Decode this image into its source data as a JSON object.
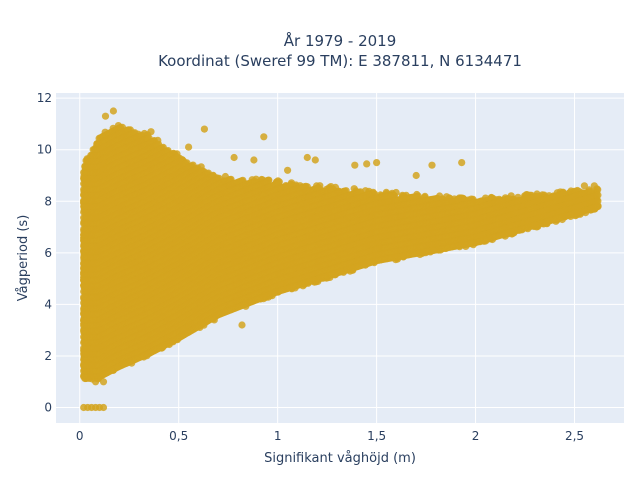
{
  "chart_data": {
    "type": "scatter",
    "title_lines": [
      "År 1979 - 2019",
      "Koordinat (Sweref 99 TM): E 387811, N 6134471"
    ],
    "xlabel": "Signifikant våghöjd (m)",
    "ylabel": "Vågperiod (s)",
    "xlim": [
      -0.12,
      2.75
    ],
    "ylim": [
      -0.6,
      12.2
    ],
    "x_ticks": [
      0,
      0.5,
      1,
      1.5,
      2,
      2.5
    ],
    "x_tick_labels": [
      "0",
      "0,5",
      "1",
      "1,5",
      "2",
      "2,5"
    ],
    "y_ticks": [
      0,
      2,
      4,
      6,
      8,
      10,
      12
    ],
    "y_tick_labels": [
      "0",
      "2",
      "4",
      "6",
      "8",
      "10",
      "12"
    ],
    "grid": true,
    "colors": {
      "marker": "#d4a520",
      "plot_background": "#e5ecf6",
      "grid": "#ffffff",
      "text": "#2a3f5f"
    },
    "envelope": [
      {
        "x": 0.02,
        "y_low": 1.1,
        "y_high": 9.4
      },
      {
        "x": 0.1,
        "y_low": 1.1,
        "y_high": 10.6
      },
      {
        "x": 0.2,
        "y_low": 1.5,
        "y_high": 11.0
      },
      {
        "x": 0.35,
        "y_low": 2.0,
        "y_high": 10.6
      },
      {
        "x": 0.5,
        "y_low": 2.6,
        "y_high": 9.8
      },
      {
        "x": 0.7,
        "y_low": 3.5,
        "y_high": 9.0
      },
      {
        "x": 1.0,
        "y_low": 4.4,
        "y_high": 8.8
      },
      {
        "x": 1.5,
        "y_low": 5.6,
        "y_high": 8.4
      },
      {
        "x": 2.0,
        "y_low": 6.3,
        "y_high": 8.1
      },
      {
        "x": 2.62,
        "y_low": 7.7,
        "y_high": 8.5
      }
    ],
    "outlier_points": [
      {
        "x": 0.17,
        "y": 11.5
      },
      {
        "x": 0.13,
        "y": 11.3
      },
      {
        "x": 0.36,
        "y": 10.7
      },
      {
        "x": 0.63,
        "y": 10.8
      },
      {
        "x": 0.93,
        "y": 10.5
      },
      {
        "x": 0.55,
        "y": 10.1
      },
      {
        "x": 0.78,
        "y": 9.7
      },
      {
        "x": 0.88,
        "y": 9.6
      },
      {
        "x": 1.15,
        "y": 9.7
      },
      {
        "x": 1.19,
        "y": 9.6
      },
      {
        "x": 1.39,
        "y": 9.4
      },
      {
        "x": 1.45,
        "y": 9.45
      },
      {
        "x": 1.5,
        "y": 9.5
      },
      {
        "x": 1.78,
        "y": 9.4
      },
      {
        "x": 1.93,
        "y": 9.5
      },
      {
        "x": 1.05,
        "y": 9.2
      },
      {
        "x": 1.7,
        "y": 9.0
      },
      {
        "x": 2.55,
        "y": 8.6
      },
      {
        "x": 2.6,
        "y": 8.6
      },
      {
        "x": 0.82,
        "y": 3.2
      },
      {
        "x": 0.68,
        "y": 3.4
      },
      {
        "x": 0.52,
        "y": 3.0
      },
      {
        "x": 0.12,
        "y": 1.0
      },
      {
        "x": 0.08,
        "y": 1.0
      }
    ],
    "zero_period_points": [
      {
        "x": 0.02,
        "y": 0
      },
      {
        "x": 0.04,
        "y": 0
      },
      {
        "x": 0.06,
        "y": 0
      },
      {
        "x": 0.08,
        "y": 0
      },
      {
        "x": 0.1,
        "y": 0
      },
      {
        "x": 0.12,
        "y": 0
      }
    ]
  }
}
